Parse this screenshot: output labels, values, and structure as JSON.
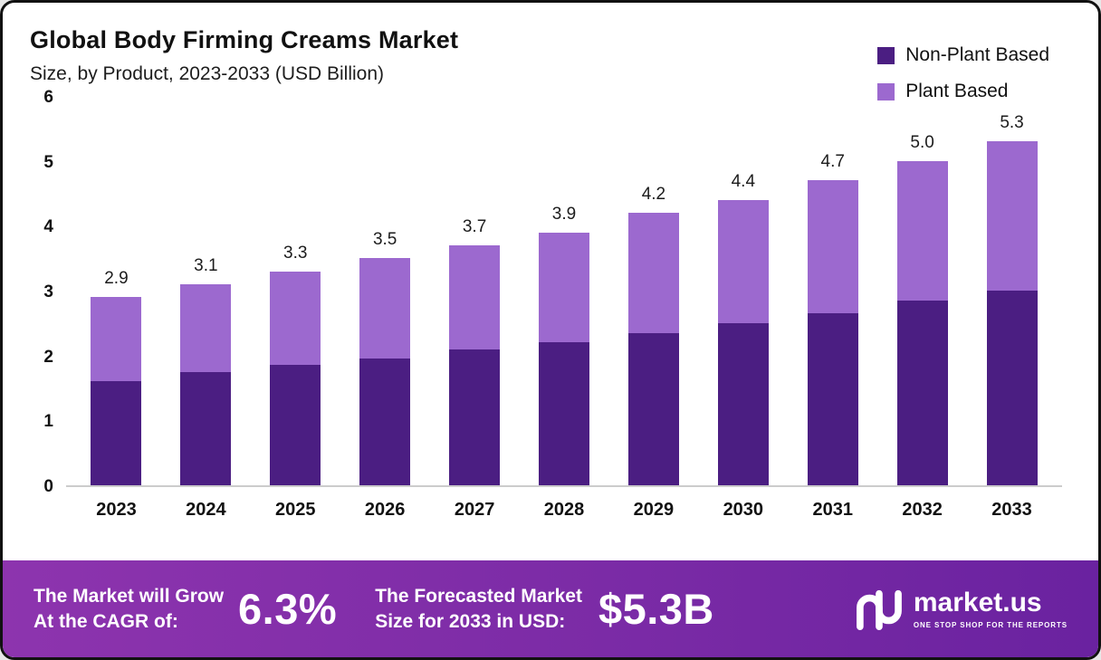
{
  "header": {
    "title": "Global Body Firming Creams Market",
    "subtitle": "Size, by Product, 2023-2033 (USD Billion)"
  },
  "legend": [
    {
      "label": "Non-Plant Based",
      "color": "#4b1e82"
    },
    {
      "label": "Plant Based",
      "color": "#9c69cf"
    }
  ],
  "chart_data": {
    "type": "bar",
    "stacked": true,
    "title": "Global Body Firming Creams Market Size, by Product, 2023-2033 (USD Billion)",
    "categories": [
      "2023",
      "2024",
      "2025",
      "2026",
      "2027",
      "2028",
      "2029",
      "2030",
      "2031",
      "2032",
      "2033"
    ],
    "series": [
      {
        "name": "Non-Plant Based",
        "color": "#4b1e82",
        "values": [
          1.6,
          1.75,
          1.85,
          1.95,
          2.1,
          2.2,
          2.35,
          2.5,
          2.65,
          2.85,
          3.0
        ]
      },
      {
        "name": "Plant Based",
        "color": "#9c69cf",
        "values": [
          1.3,
          1.35,
          1.45,
          1.55,
          1.6,
          1.7,
          1.85,
          1.9,
          2.05,
          2.15,
          2.3
        ]
      }
    ],
    "totals": [
      2.9,
      3.1,
      3.3,
      3.5,
      3.7,
      3.9,
      4.2,
      4.4,
      4.7,
      5.0,
      5.3
    ],
    "xlabel": "",
    "ylabel": "",
    "ylim": [
      0,
      6
    ],
    "yticks": [
      0,
      1,
      2,
      3,
      4,
      5,
      6
    ],
    "grid": false,
    "legend_position": "top-right"
  },
  "footer": {
    "cagr_label": [
      "The Market will Grow",
      "At the CAGR of:"
    ],
    "cagr_value": "6.3%",
    "forecast_label": [
      "The Forecasted Market",
      "Size for 2033 in USD:"
    ],
    "forecast_value": "$5.3B",
    "brand": "market.us",
    "brand_tagline": "ONE STOP SHOP FOR THE REPORTS"
  }
}
